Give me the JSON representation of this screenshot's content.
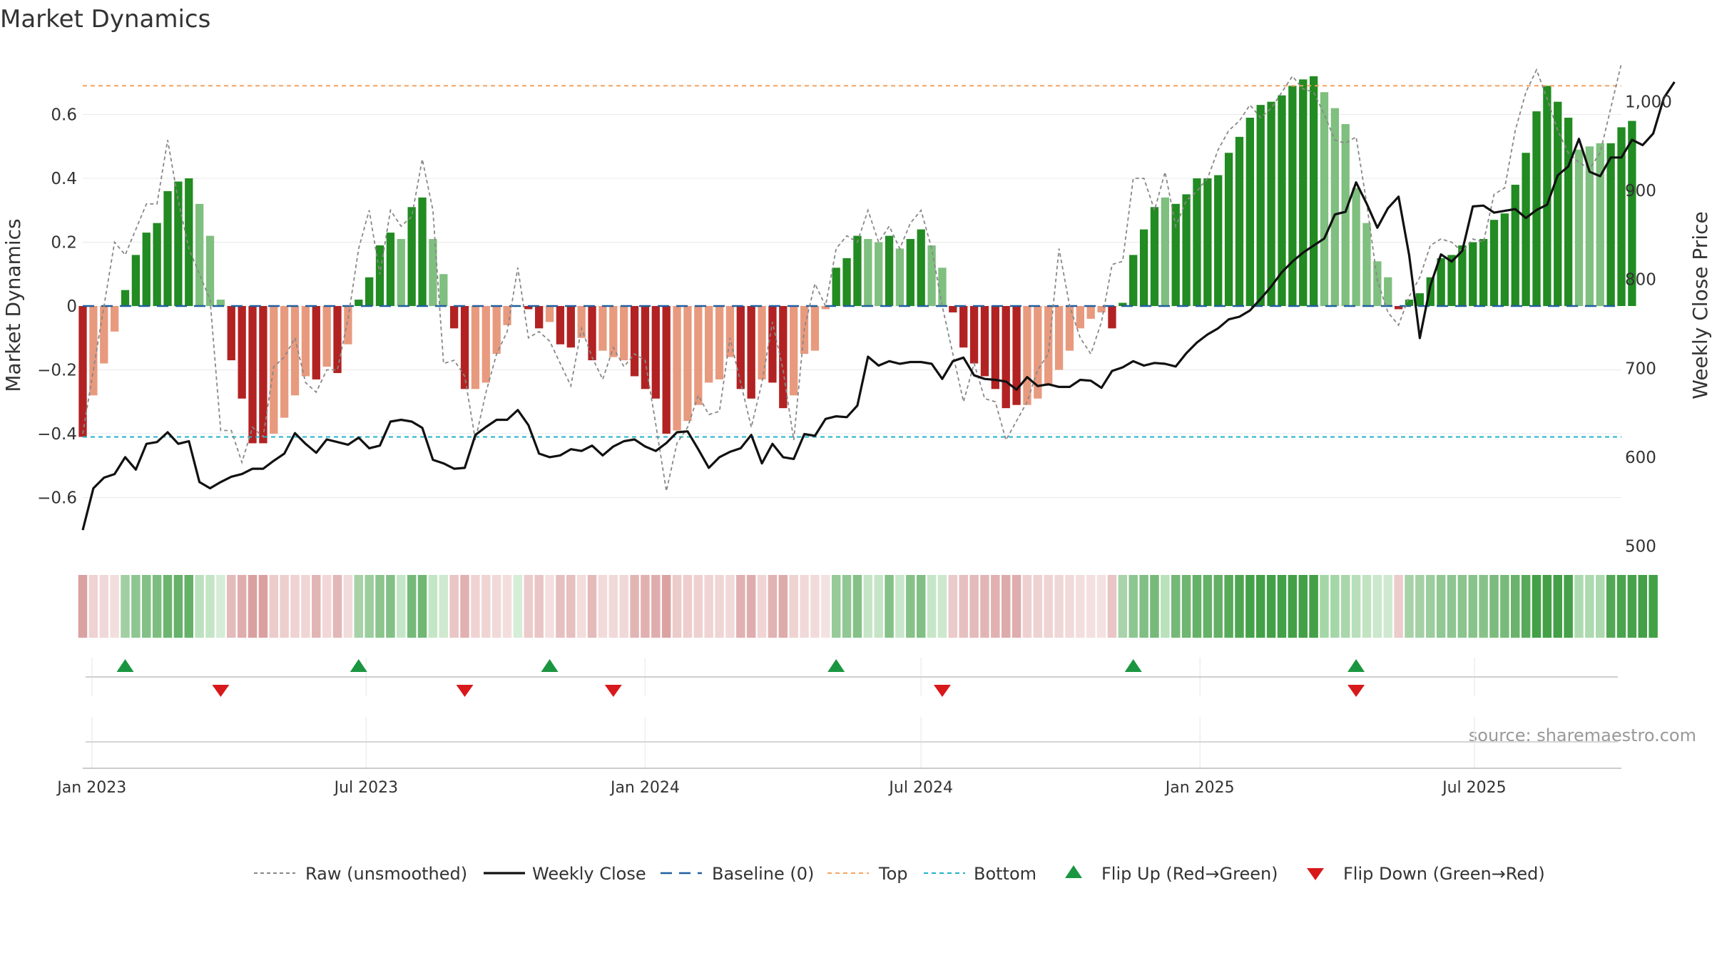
{
  "title": "Market Dynamics",
  "watermark": "source: sharemaestro.com",
  "colors": {
    "strong_up": "#228B22",
    "weak_up": "#7FBF7F",
    "strong_down": "#B22222",
    "weak_down": "#E89A7E",
    "top_line": "#F4A460",
    "bottom_line": "#20B2CC",
    "baseline": "#1F5F9F",
    "flip_up": "#1A9641",
    "flip_down": "#D7191C"
  },
  "legend": {
    "raw": "Raw (unsmoothed)",
    "close": "Weekly Close",
    "baseline": "Baseline (0)",
    "top": "Top",
    "bottom": "Bottom",
    "flip_up": "Flip Up (Red→Green)",
    "flip_down": "Flip Down (Green→Red)"
  },
  "chart_data": {
    "type": "bar",
    "ylabel_left": "Market Dynamics",
    "ylabel_right": "Weekly Close Price",
    "ylim_left": [
      -0.78,
      0.78
    ],
    "ylim_right": [
      490,
      1050
    ],
    "left_ticks": [
      "−0.6",
      "−0.4",
      "−0.2",
      "0",
      "0.2",
      "0.4",
      "0.6"
    ],
    "right_ticks": [
      "500",
      "600",
      "700",
      "800",
      "900",
      "1,000"
    ],
    "x_ticks": [
      "Jan 2023",
      "Jul 2023",
      "Jan 2024",
      "Jul 2024",
      "Jan 2025",
      "Jul 2025"
    ],
    "x_range": [
      "2022-12-26",
      "2025-10-06"
    ],
    "top": 0.69,
    "bottom": -0.41,
    "baseline": 0,
    "start_week": "2022-12-26",
    "momentum": [
      -0.41,
      -0.28,
      -0.18,
      -0.08,
      0.05,
      0.16,
      0.23,
      0.26,
      0.36,
      0.39,
      0.4,
      0.32,
      0.22,
      0.02,
      -0.17,
      -0.29,
      -0.43,
      -0.43,
      -0.4,
      -0.35,
      -0.28,
      -0.22,
      -0.23,
      -0.19,
      -0.21,
      -0.12,
      0.02,
      0.09,
      0.19,
      0.23,
      0.21,
      0.31,
      0.34,
      0.21,
      0.1,
      -0.07,
      -0.26,
      -0.26,
      -0.24,
      -0.15,
      -0.06,
      0.0,
      -0.01,
      -0.07,
      -0.05,
      -0.12,
      -0.13,
      -0.1,
      -0.17,
      -0.14,
      -0.16,
      -0.17,
      -0.22,
      -0.26,
      -0.29,
      -0.4,
      -0.39,
      -0.36,
      -0.31,
      -0.24,
      -0.23,
      -0.16,
      -0.26,
      -0.29,
      -0.23,
      -0.24,
      -0.32,
      -0.28,
      -0.15,
      -0.14,
      -0.01,
      0.12,
      0.15,
      0.22,
      0.21,
      0.2,
      0.22,
      0.18,
      0.21,
      0.24,
      0.19,
      0.12,
      -0.02,
      -0.13,
      -0.18,
      -0.22,
      -0.26,
      -0.32,
      -0.31,
      -0.31,
      -0.29,
      -0.25,
      -0.2,
      -0.14,
      -0.07,
      -0.04,
      -0.02,
      -0.07,
      0.01,
      0.16,
      0.24,
      0.31,
      0.34,
      0.32,
      0.35,
      0.4,
      0.4,
      0.41,
      0.48,
      0.53,
      0.59,
      0.63,
      0.64,
      0.66,
      0.69,
      0.71,
      0.72,
      0.67,
      0.62,
      0.57,
      0.37,
      0.26,
      0.14,
      0.09,
      -0.01,
      0.02,
      0.04,
      0.09,
      0.15,
      0.16,
      0.19,
      0.2,
      0.21,
      0.27,
      0.29,
      0.38,
      0.48,
      0.61,
      0.69,
      0.64,
      0.59,
      0.49,
      0.5,
      0.51,
      0.51,
      0.56,
      0.58
    ],
    "momentum_kind": [
      "sd",
      "wd",
      "wd",
      "wd",
      "su",
      "su",
      "su",
      "su",
      "su",
      "su",
      "su",
      "wu",
      "wu",
      "wu",
      "sd",
      "sd",
      "sd",
      "sd",
      "wd",
      "wd",
      "wd",
      "wd",
      "sd",
      "wd",
      "sd",
      "wd",
      "su",
      "su",
      "su",
      "su",
      "wu",
      "su",
      "su",
      "wu",
      "wu",
      "sd",
      "sd",
      "wd",
      "wd",
      "wd",
      "wd",
      "wu",
      "sd",
      "sd",
      "wd",
      "sd",
      "sd",
      "wd",
      "sd",
      "wd",
      "wd",
      "wd",
      "sd",
      "sd",
      "sd",
      "sd",
      "wd",
      "wd",
      "wd",
      "wd",
      "wd",
      "wd",
      "sd",
      "sd",
      "wd",
      "sd",
      "sd",
      "wd",
      "wd",
      "wd",
      "wd",
      "su",
      "su",
      "su",
      "wu",
      "wu",
      "su",
      "wu",
      "su",
      "su",
      "wu",
      "wu",
      "sd",
      "sd",
      "sd",
      "sd",
      "sd",
      "sd",
      "sd",
      "wd",
      "wd",
      "wd",
      "wd",
      "wd",
      "wd",
      "wd",
      "wd",
      "sd",
      "su",
      "su",
      "su",
      "su",
      "wu",
      "su",
      "su",
      "su",
      "su",
      "su",
      "su",
      "su",
      "su",
      "su",
      "su",
      "su",
      "su",
      "su",
      "su",
      "wu",
      "wu",
      "wu",
      "wu",
      "wu",
      "wu",
      "wu",
      "sd",
      "su",
      "su",
      "su",
      "su",
      "su",
      "su",
      "su",
      "su",
      "su",
      "su",
      "su",
      "su",
      "su",
      "su",
      "su",
      "su",
      "wu",
      "wu",
      "wu",
      "su",
      "su",
      "su",
      "su",
      "su"
    ],
    "raw": [
      -0.4,
      -0.2,
      0.0,
      0.2,
      0.16,
      0.24,
      0.32,
      0.32,
      0.52,
      0.33,
      0.18,
      0.1,
      0.02,
      -0.39,
      -0.39,
      -0.49,
      -0.38,
      -0.41,
      -0.19,
      -0.16,
      -0.1,
      -0.24,
      -0.27,
      -0.2,
      -0.2,
      -0.04,
      0.18,
      0.3,
      0.1,
      0.3,
      0.25,
      0.28,
      0.46,
      0.3,
      -0.18,
      -0.17,
      -0.22,
      -0.42,
      -0.27,
      -0.15,
      -0.08,
      0.12,
      -0.1,
      -0.08,
      -0.11,
      -0.18,
      -0.25,
      -0.07,
      -0.16,
      -0.23,
      -0.13,
      -0.19,
      -0.15,
      -0.17,
      -0.37,
      -0.58,
      -0.43,
      -0.38,
      -0.28,
      -0.34,
      -0.33,
      -0.1,
      -0.24,
      -0.38,
      -0.24,
      -0.05,
      -0.2,
      -0.42,
      -0.07,
      0.07,
      0.0,
      0.18,
      0.22,
      0.2,
      0.3,
      0.2,
      0.25,
      0.18,
      0.26,
      0.3,
      0.18,
      0.0,
      -0.15,
      -0.3,
      -0.18,
      -0.29,
      -0.3,
      -0.42,
      -0.36,
      -0.3,
      -0.2,
      -0.15,
      0.18,
      0.0,
      -0.1,
      -0.15,
      -0.05,
      0.13,
      0.14,
      0.4,
      0.4,
      0.3,
      0.42,
      0.25,
      0.33,
      0.36,
      0.4,
      0.49,
      0.55,
      0.58,
      0.63,
      0.59,
      0.62,
      0.67,
      0.72,
      0.68,
      0.67,
      0.6,
      0.52,
      0.51,
      0.53,
      0.32,
      0.08,
      -0.02,
      -0.06,
      0.03,
      0.09,
      0.19,
      0.21,
      0.2,
      0.17,
      0.21,
      0.2,
      0.35,
      0.37,
      0.55,
      0.67,
      0.74,
      0.65,
      0.55,
      0.48,
      0.45,
      0.43,
      0.48,
      0.62,
      0.76
    ],
    "close": [
      518,
      565,
      577,
      581,
      600,
      586,
      615,
      617,
      628,
      615,
      618,
      572,
      565,
      572,
      578,
      581,
      587,
      587,
      596,
      604,
      627,
      615,
      605,
      620,
      617,
      614,
      622,
      610,
      613,
      640,
      642,
      640,
      633,
      597,
      593,
      587,
      588,
      625,
      634,
      642,
      642,
      653,
      636,
      604,
      600,
      602,
      609,
      607,
      613,
      602,
      612,
      618,
      620,
      612,
      607,
      616,
      628,
      629,
      609,
      588,
      600,
      606,
      610,
      625,
      593,
      615,
      600,
      598,
      626,
      624,
      643,
      646,
      645,
      658,
      713,
      703,
      708,
      705,
      707,
      707,
      705,
      688,
      708,
      712,
      692,
      688,
      687,
      685,
      676,
      690,
      680,
      682,
      679,
      679,
      687,
      686,
      678,
      697,
      701,
      708,
      703,
      706,
      705,
      702,
      717,
      729,
      738,
      745,
      755,
      758,
      765,
      778,
      792,
      808,
      820,
      830,
      838,
      846,
      873,
      876,
      909,
      885,
      858,
      880,
      893,
      827,
      734,
      793,
      828,
      820,
      832,
      882,
      883,
      875,
      877,
      879,
      869,
      878,
      884,
      917,
      927,
      958,
      921,
      916,
      937,
      937,
      957,
      951,
      964,
      1004,
      1022
    ],
    "status_strip": [
      "sd",
      "wd",
      "wd",
      "wd",
      "su",
      "su",
      "su",
      "su",
      "su",
      "su",
      "su",
      "wu",
      "wu",
      "wu",
      "sd",
      "sd",
      "sd",
      "sd",
      "wd",
      "wd",
      "wd",
      "wd",
      "sd",
      "wd",
      "sd",
      "wd",
      "su",
      "su",
      "su",
      "su",
      "wu",
      "su",
      "su",
      "wu",
      "wu",
      "sd",
      "sd",
      "wd",
      "wd",
      "wd",
      "wd",
      "wu",
      "sd",
      "sd",
      "wd",
      "sd",
      "sd",
      "wd",
      "sd",
      "wd",
      "wd",
      "wd",
      "sd",
      "sd",
      "sd",
      "sd",
      "wd",
      "wd",
      "wd",
      "wd",
      "wd",
      "wd",
      "sd",
      "sd",
      "wd",
      "sd",
      "sd",
      "wd",
      "wd",
      "wd",
      "wd",
      "su",
      "su",
      "su",
      "wu",
      "wu",
      "su",
      "wu",
      "su",
      "su",
      "wu",
      "wu",
      "sd",
      "sd",
      "sd",
      "sd",
      "sd",
      "sd",
      "sd",
      "wd",
      "wd",
      "wd",
      "wd",
      "wd",
      "wd",
      "wd",
      "wd",
      "sd",
      "su",
      "su",
      "su",
      "su",
      "wu",
      "su",
      "su",
      "su",
      "su",
      "su",
      "su",
      "su",
      "su",
      "su",
      "su",
      "su",
      "su",
      "su",
      "su",
      "wu",
      "wu",
      "wu",
      "wu",
      "wu",
      "wu",
      "wu",
      "sd",
      "su",
      "su",
      "su",
      "su",
      "su",
      "su",
      "su",
      "su",
      "su",
      "su",
      "su",
      "su",
      "su",
      "su",
      "su",
      "su",
      "wu",
      "wu",
      "wu",
      "su",
      "su",
      "su",
      "su",
      "su"
    ],
    "flip_up_dates": [
      "2023-01-23",
      "2023-06-26",
      "2023-10-30",
      "2024-05-06",
      "2024-11-18",
      "2025-04-14"
    ],
    "flip_down_dates": [
      "2023-03-27",
      "2023-09-04",
      "2023-12-11",
      "2024-07-15",
      "2025-04-14"
    ]
  }
}
